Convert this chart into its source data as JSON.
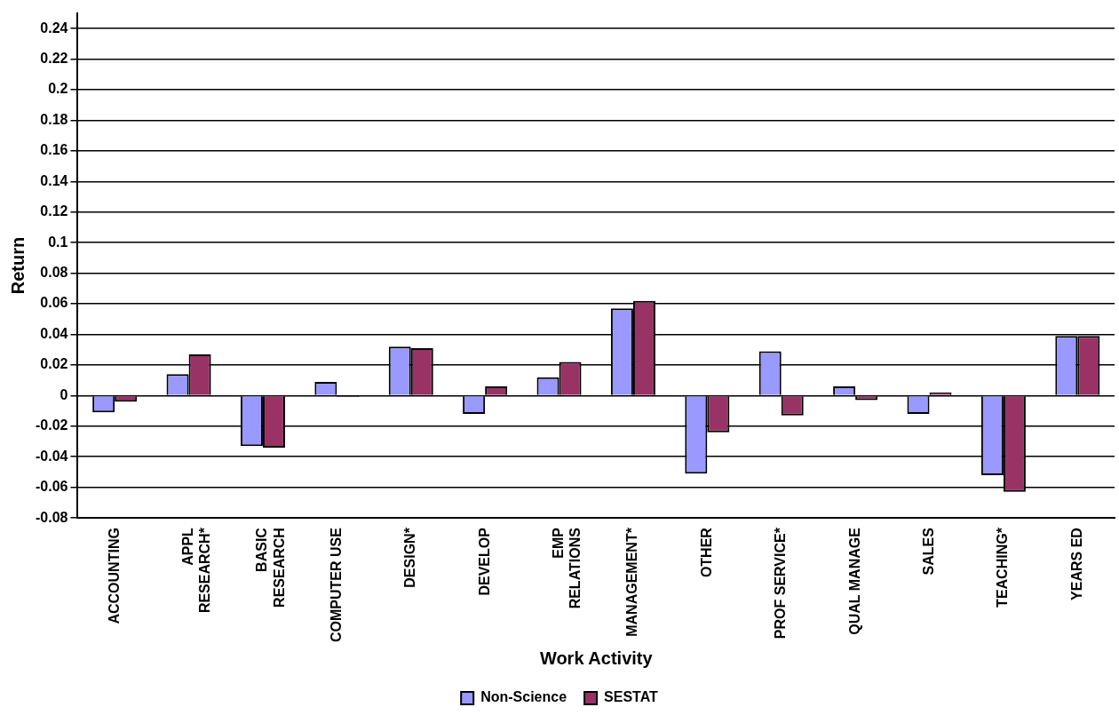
{
  "chart_data": {
    "type": "bar",
    "xlabel": "Work Activity",
    "ylabel": "Return",
    "categories": [
      "ACCOUNTING",
      "APPL\nRESEARCH*",
      "BASIC\nRESEARCH",
      "COMPUTER USE",
      "DESIGN*",
      "DEVELOP",
      "EMP\nRELATIONS",
      "MANAGEMENT*",
      "OTHER",
      "PROF SERVICE*",
      "QUAL MANAGE",
      "SALES",
      "TEACHING*",
      "YEARS ED"
    ],
    "series": [
      {
        "name": "Non-Science",
        "color": "#9999ff",
        "values": [
          -0.011,
          0.014,
          -0.033,
          0.009,
          0.032,
          -0.012,
          0.012,
          0.057,
          -0.051,
          0.029,
          0.006,
          -0.012,
          -0.052,
          0.039
        ]
      },
      {
        "name": "SESTAT",
        "color": "#993366",
        "values": [
          -0.004,
          0.027,
          -0.034,
          -0.001,
          0.031,
          0.006,
          0.022,
          0.062,
          -0.024,
          -0.013,
          -0.003,
          0.002,
          -0.063,
          0.039
        ]
      }
    ],
    "ylim": [
      -0.08,
      0.25
    ],
    "yticks": [
      -0.08,
      -0.06,
      -0.04,
      -0.02,
      0,
      0.02,
      0.04,
      0.06,
      0.08,
      0.1,
      0.12,
      0.14,
      0.16,
      0.18,
      0.2,
      0.22,
      0.24
    ],
    "grid": "y",
    "legend": "bottom"
  }
}
